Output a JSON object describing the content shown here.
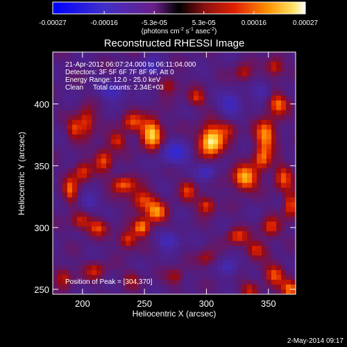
{
  "chart_data": {
    "type": "heatmap",
    "title": "Reconstructed RHESSI Image",
    "colorbar": {
      "ticks": [
        "-0.00027",
        "-0.00016",
        "-5.3e-05",
        "5.3e-05",
        "0.00016",
        "0.00027"
      ],
      "tick_values": [
        -0.00027,
        -0.00016,
        -5.3e-05,
        5.3e-05,
        0.00016,
        0.00027
      ],
      "range": [
        -0.00027,
        0.00027
      ],
      "unit_main": "(photons cm",
      "unit_sup1": "-2",
      "unit_mid": " s",
      "unit_sup2": "-1",
      "unit_after": " asec",
      "unit_sup3": "-2",
      "unit_close": ")"
    },
    "xlabel": "Heliocentric X (arcsec)",
    "ylabel": "Heliocentric Y (arcsec)",
    "xlim": [
      176,
      372
    ],
    "ylim": [
      246,
      442
    ],
    "xticks": [
      200,
      250,
      300,
      350
    ],
    "yticks": [
      250,
      300,
      350,
      400
    ],
    "info_lines": [
      "21-Apr-2012 06:07:24.000 to 06:11:04.000",
      "Detectors: 3F 5F 6F 7F 8F 9F, Att 0",
      "Energy Range: 12.0 - 25.0 keV",
      "Clean     Total counts: 2.34E+03"
    ],
    "peak_label": "Position of Peak = [304,370]",
    "sources": [
      {
        "x": 304,
        "y": 370,
        "amp": 1.0,
        "sx": 7,
        "sy": 9
      },
      {
        "x": 256,
        "y": 376,
        "amp": 0.85,
        "sx": 6,
        "sy": 9
      },
      {
        "x": 331,
        "y": 340,
        "amp": 0.8,
        "sx": 7,
        "sy": 7
      },
      {
        "x": 348,
        "y": 375,
        "amp": 0.7,
        "sx": 6,
        "sy": 9
      },
      {
        "x": 358,
        "y": 400,
        "amp": 0.6,
        "sx": 6,
        "sy": 6
      },
      {
        "x": 240,
        "y": 385,
        "amp": 0.5,
        "sx": 6,
        "sy": 6
      },
      {
        "x": 203,
        "y": 385,
        "amp": 0.55,
        "sx": 5,
        "sy": 8
      },
      {
        "x": 193,
        "y": 380,
        "amp": 0.45,
        "sx": 4,
        "sy": 6
      },
      {
        "x": 228,
        "y": 370,
        "amp": 0.45,
        "sx": 5,
        "sy": 5
      },
      {
        "x": 217,
        "y": 355,
        "amp": 0.55,
        "sx": 5,
        "sy": 7
      },
      {
        "x": 200,
        "y": 345,
        "amp": 0.5,
        "sx": 5,
        "sy": 6
      },
      {
        "x": 190,
        "y": 330,
        "amp": 0.55,
        "sx": 4,
        "sy": 8
      },
      {
        "x": 233,
        "y": 335,
        "amp": 0.6,
        "sx": 7,
        "sy": 5
      },
      {
        "x": 248,
        "y": 322,
        "amp": 0.55,
        "sx": 7,
        "sy": 6
      },
      {
        "x": 260,
        "y": 312,
        "amp": 0.65,
        "sx": 6,
        "sy": 6
      },
      {
        "x": 248,
        "y": 300,
        "amp": 0.7,
        "sx": 5,
        "sy": 5
      },
      {
        "x": 236,
        "y": 290,
        "amp": 0.55,
        "sx": 5,
        "sy": 5
      },
      {
        "x": 212,
        "y": 300,
        "amp": 0.5,
        "sx": 6,
        "sy": 5
      },
      {
        "x": 198,
        "y": 305,
        "amp": 0.45,
        "sx": 5,
        "sy": 5
      },
      {
        "x": 185,
        "y": 260,
        "amp": 0.4,
        "sx": 5,
        "sy": 6
      },
      {
        "x": 210,
        "y": 265,
        "amp": 0.4,
        "sx": 6,
        "sy": 5
      },
      {
        "x": 285,
        "y": 330,
        "amp": 0.45,
        "sx": 5,
        "sy": 6
      },
      {
        "x": 300,
        "y": 318,
        "amp": 0.55,
        "sx": 5,
        "sy": 5
      },
      {
        "x": 292,
        "y": 405,
        "amp": 0.45,
        "sx": 5,
        "sy": 5
      },
      {
        "x": 270,
        "y": 415,
        "amp": 0.4,
        "sx": 5,
        "sy": 5
      },
      {
        "x": 355,
        "y": 430,
        "amp": 0.5,
        "sx": 5,
        "sy": 5
      },
      {
        "x": 330,
        "y": 425,
        "amp": 0.4,
        "sx": 5,
        "sy": 5
      },
      {
        "x": 345,
        "y": 355,
        "amp": 0.55,
        "sx": 5,
        "sy": 7
      },
      {
        "x": 362,
        "y": 340,
        "amp": 0.5,
        "sx": 5,
        "sy": 8
      },
      {
        "x": 368,
        "y": 318,
        "amp": 0.55,
        "sx": 4,
        "sy": 8
      },
      {
        "x": 352,
        "y": 300,
        "amp": 0.5,
        "sx": 5,
        "sy": 6
      },
      {
        "x": 325,
        "y": 293,
        "amp": 0.5,
        "sx": 6,
        "sy": 5
      },
      {
        "x": 340,
        "y": 282,
        "amp": 0.45,
        "sx": 6,
        "sy": 5
      },
      {
        "x": 355,
        "y": 262,
        "amp": 0.55,
        "sx": 6,
        "sy": 6
      },
      {
        "x": 368,
        "y": 250,
        "amp": 0.65,
        "sx": 5,
        "sy": 5
      },
      {
        "x": 335,
        "y": 250,
        "amp": 0.4,
        "sx": 5,
        "sy": 5
      },
      {
        "x": 300,
        "y": 275,
        "amp": 0.35,
        "sx": 5,
        "sy": 5
      },
      {
        "x": 275,
        "y": 260,
        "amp": 0.35,
        "sx": 5,
        "sy": 5
      },
      {
        "x": 240,
        "y": 258,
        "amp": 0.3,
        "sx": 5,
        "sy": 5
      },
      {
        "x": 318,
        "y": 380,
        "amp": 0.35,
        "sx": 5,
        "sy": 5
      },
      {
        "x": 275,
        "y": 360,
        "amp": -0.55,
        "sx": 8,
        "sy": 6
      },
      {
        "x": 320,
        "y": 400,
        "amp": -0.5,
        "sx": 6,
        "sy": 6
      },
      {
        "x": 225,
        "y": 410,
        "amp": -0.45,
        "sx": 7,
        "sy": 5
      },
      {
        "x": 300,
        "y": 345,
        "amp": -0.45,
        "sx": 5,
        "sy": 5
      },
      {
        "x": 270,
        "y": 290,
        "amp": -0.45,
        "sx": 6,
        "sy": 5
      },
      {
        "x": 318,
        "y": 268,
        "amp": -0.4,
        "sx": 5,
        "sy": 5
      },
      {
        "x": 205,
        "y": 320,
        "amp": -0.35,
        "sx": 5,
        "sy": 5
      },
      {
        "x": 255,
        "y": 430,
        "amp": -0.4,
        "sx": 6,
        "sy": 5
      },
      {
        "x": 345,
        "y": 410,
        "amp": -0.35,
        "sx": 5,
        "sy": 5
      }
    ]
  },
  "footer": {
    "date": "2-May-2014 09:17"
  }
}
